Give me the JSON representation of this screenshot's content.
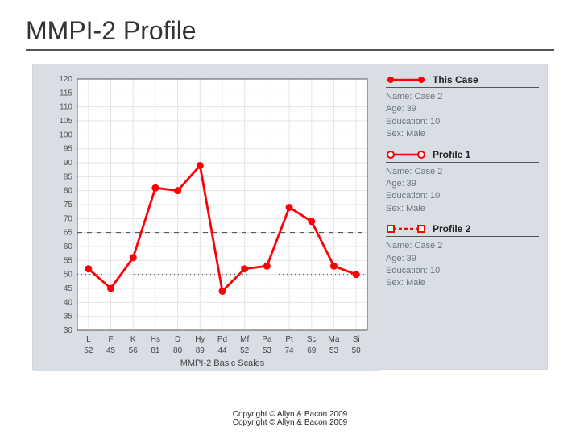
{
  "title": "MMPI-2 Profile",
  "chart": {
    "type": "line",
    "x_label": "MMPI-2 Basic Scales",
    "y_axis": {
      "min": 30,
      "max": 120,
      "step": 5
    },
    "scales": [
      {
        "code": "L",
        "value": 52
      },
      {
        "code": "F",
        "value": 45
      },
      {
        "code": "K",
        "value": 56
      },
      {
        "code": "Hs",
        "value": 81
      },
      {
        "code": "D",
        "value": 80
      },
      {
        "code": "Hy",
        "value": 89
      },
      {
        "code": "Pd",
        "value": 44
      },
      {
        "code": "Mf",
        "value": 52
      },
      {
        "code": "Pa",
        "value": 53
      },
      {
        "code": "Pt",
        "value": 74
      },
      {
        "code": "Sc",
        "value": 69
      },
      {
        "code": "Ma",
        "value": 53
      },
      {
        "code": "Si",
        "value": 50
      }
    ],
    "reference_lines": [
      {
        "y": 65,
        "dash": "6 6"
      },
      {
        "y": 50,
        "dash": "1 4"
      }
    ],
    "line_color": "#ff0006",
    "line_width": 2.8,
    "marker_radius": 4.5,
    "marker_fill": "#ff0006",
    "plot_bg": "#ffffff",
    "outer_bg": "#d9dde4",
    "grid_color": "#e1e5ec",
    "axis_color": "#555555",
    "label_fontsize": 10,
    "axis_fontsize": 10
  },
  "legend": [
    {
      "label": "This Case",
      "swatch": {
        "type": "line",
        "color": "#ff0006",
        "marker": "dot",
        "dash": "none"
      },
      "meta": [
        "Name: Case 2",
        "Age: 39",
        "Education: 10",
        "Sex: Male"
      ]
    },
    {
      "label": "Profile 1",
      "swatch": {
        "type": "line",
        "color": "#ff0006",
        "marker": "open-circle",
        "dash": "none"
      },
      "meta": [
        "Name: Case 2",
        "Age: 39",
        "Education: 10",
        "Sex: Male"
      ]
    },
    {
      "label": "Profile 2",
      "swatch": {
        "type": "line",
        "color": "#ff0006",
        "marker": "open-square",
        "dash": "4 3"
      },
      "meta": [
        "Name: Case 2",
        "Age: 39",
        "Education: 10",
        "Sex: Male"
      ]
    }
  ],
  "copyright_lines": [
    "Copyright © Allyn & Bacon 2009",
    "Copyright © Allyn & Bacon 2009"
  ]
}
